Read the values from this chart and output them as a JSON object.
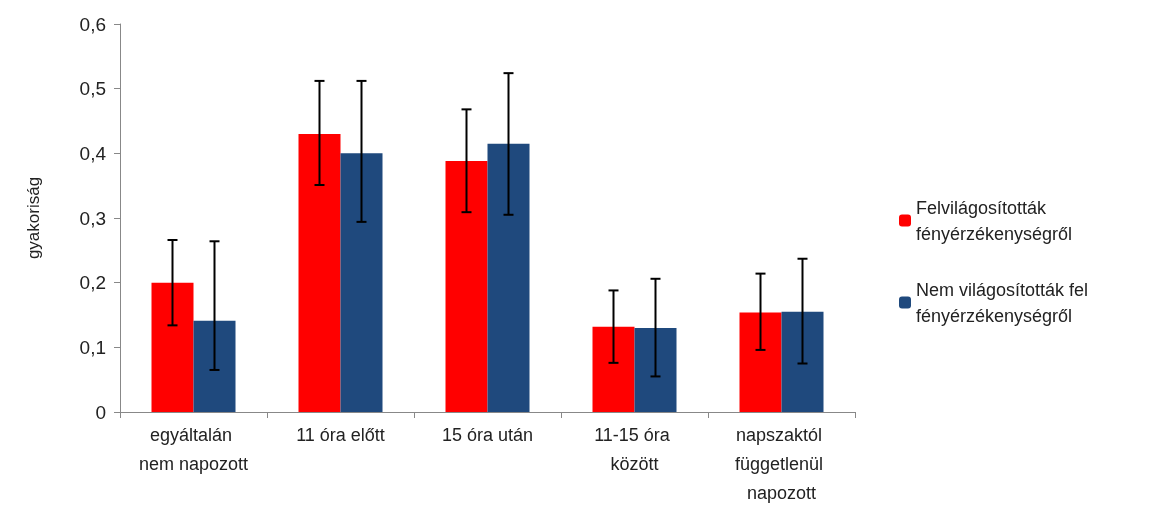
{
  "chart_data": {
    "type": "bar",
    "ylabel": "gyakoriság",
    "categories": [
      "egyáltalán nem napozott",
      "11 óra előtt",
      "15 óra után",
      "11-15 óra között",
      "napszaktól függetlenül napozott"
    ],
    "series": [
      {
        "name": "Felvilágosították fényérzékenységről",
        "color": "#ff0000",
        "values": [
          0.2,
          0.43,
          0.388,
          0.132,
          0.154
        ],
        "errors": [
          [
            0.134,
            0.266
          ],
          [
            0.351,
            0.512
          ],
          [
            0.309,
            0.468
          ],
          [
            0.076,
            0.188
          ],
          [
            0.096,
            0.214
          ]
        ]
      },
      {
        "name": "Nem világosították fel fényérzékenységről",
        "color": "#1f497d",
        "values": [
          0.141,
          0.4,
          0.415,
          0.13,
          0.155
        ],
        "errors": [
          [
            0.065,
            0.264
          ],
          [
            0.294,
            0.512
          ],
          [
            0.305,
            0.524
          ],
          [
            0.055,
            0.206
          ],
          [
            0.075,
            0.237
          ]
        ]
      }
    ],
    "ylim": [
      0,
      0.6
    ],
    "yticks": [
      0,
      {
        "value": 0.1,
        "label": "0,1"
      },
      {
        "value": 0.2,
        "label": "0,2"
      },
      {
        "value": 0.3,
        "label": "0,3"
      },
      {
        "value": 0.4,
        "label": "0,4"
      },
      {
        "value": 0.5,
        "label": "0,5"
      },
      {
        "value": 0.6,
        "label": "0,6"
      }
    ],
    "grid": false,
    "legend": "right"
  }
}
